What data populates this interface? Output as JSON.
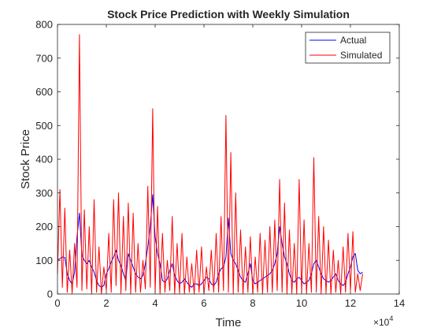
{
  "chart_data": {
    "type": "line",
    "title": "Stock Price Prediction with Weekly Simulation",
    "xlabel": "Time",
    "ylabel": "Stock Price",
    "xlim": [
      0,
      140000
    ],
    "ylim": [
      0,
      800
    ],
    "x_tick_labels": [
      "0",
      "2",
      "4",
      "6",
      "8",
      "10",
      "12",
      "14"
    ],
    "x_tick_values": [
      0,
      20000,
      40000,
      60000,
      80000,
      100000,
      120000,
      140000
    ],
    "x_exponent_label": "×10",
    "x_exponent_power": "4",
    "y_tick_labels": [
      "0",
      "100",
      "200",
      "300",
      "400",
      "500",
      "600",
      "700",
      "800"
    ],
    "y_tick_values": [
      0,
      100,
      200,
      300,
      400,
      500,
      600,
      700,
      800
    ],
    "grid": false,
    "legend_position": "top-right",
    "series": [
      {
        "name": "Actual",
        "color": "#0000ff",
        "x": [
          0,
          1000,
          2000,
          3000,
          4000,
          5000,
          6000,
          7000,
          8000,
          9000,
          10000,
          11000,
          12000,
          13000,
          14000,
          15000,
          16000,
          17000,
          18000,
          19000,
          20000,
          21000,
          22000,
          23000,
          24000,
          25000,
          26000,
          27000,
          28000,
          29000,
          30000,
          31000,
          32000,
          33000,
          34000,
          35000,
          36000,
          37000,
          38000,
          39000,
          40000,
          41000,
          42000,
          43000,
          44000,
          45000,
          46000,
          47000,
          48000,
          49000,
          50000,
          51000,
          52000,
          53000,
          54000,
          55000,
          56000,
          57000,
          58000,
          59000,
          60000,
          61000,
          62000,
          63000,
          64000,
          65000,
          66000,
          67000,
          68000,
          69000,
          70000,
          71000,
          72000,
          73000,
          74000,
          75000,
          76000,
          77000,
          78000,
          79000,
          80000,
          81000,
          82000,
          83000,
          84000,
          85000,
          86000,
          87000,
          88000,
          89000,
          90000,
          91000,
          92000,
          93000,
          94000,
          95000,
          96000,
          97000,
          98000,
          99000,
          100000,
          101000,
          102000,
          103000,
          104000,
          105000,
          106000,
          107000,
          108000,
          109000,
          110000,
          111000,
          112000,
          113000,
          114000,
          115000,
          116000,
          117000,
          118000,
          119000,
          120000,
          121000,
          122000,
          123000,
          124000,
          125000
        ],
        "values": [
          100,
          105,
          110,
          108,
          60,
          40,
          30,
          65,
          170,
          240,
          115,
          100,
          90,
          100,
          80,
          65,
          40,
          25,
          20,
          25,
          60,
          75,
          95,
          110,
          130,
          100,
          85,
          60,
          40,
          120,
          100,
          80,
          60,
          50,
          45,
          55,
          90,
          140,
          200,
          295,
          170,
          120,
          90,
          40,
          35,
          45,
          70,
          90,
          55,
          40,
          30,
          35,
          45,
          35,
          25,
          20,
          30,
          30,
          25,
          30,
          40,
          50,
          45,
          30,
          25,
          35,
          60,
          75,
          80,
          110,
          225,
          120,
          100,
          90,
          70,
          50,
          40,
          35,
          60,
          90,
          40,
          30,
          35,
          40,
          45,
          50,
          55,
          60,
          70,
          90,
          120,
          200,
          150,
          110,
          90,
          60,
          40,
          35,
          45,
          50,
          40,
          30,
          35,
          40,
          60,
          90,
          100,
          80,
          60,
          45,
          40,
          35,
          40,
          50,
          60,
          40,
          30,
          25,
          35,
          60,
          80,
          110,
          120,
          70,
          60,
          65
        ]
      },
      {
        "name": "Simulated",
        "color": "#ff0000",
        "x": [
          0,
          1000,
          2000,
          3000,
          4000,
          5000,
          6000,
          7000,
          8000,
          9000,
          10000,
          11000,
          12000,
          13000,
          14000,
          15000,
          16000,
          17000,
          18000,
          19000,
          20000,
          21000,
          22000,
          23000,
          24000,
          25000,
          26000,
          27000,
          28000,
          29000,
          30000,
          31000,
          32000,
          33000,
          34000,
          35000,
          36000,
          37000,
          38000,
          39000,
          40000,
          41000,
          42000,
          43000,
          44000,
          45000,
          46000,
          47000,
          48000,
          49000,
          50000,
          51000,
          52000,
          53000,
          54000,
          55000,
          56000,
          57000,
          58000,
          59000,
          60000,
          61000,
          62000,
          63000,
          64000,
          65000,
          66000,
          67000,
          68000,
          69000,
          70000,
          71000,
          72000,
          73000,
          74000,
          75000,
          76000,
          77000,
          78000,
          79000,
          80000,
          81000,
          82000,
          83000,
          84000,
          85000,
          86000,
          87000,
          88000,
          89000,
          90000,
          91000,
          92000,
          93000,
          94000,
          95000,
          96000,
          97000,
          98000,
          99000,
          100000,
          101000,
          102000,
          103000,
          104000,
          105000,
          106000,
          107000,
          108000,
          109000,
          110000,
          111000,
          112000,
          113000,
          114000,
          115000,
          116000,
          117000,
          118000,
          119000,
          120000,
          121000,
          122000,
          123000,
          124000,
          125000
        ],
        "values": [
          60,
          310,
          20,
          255,
          5,
          130,
          2,
          150,
          20,
          770,
          10,
          250,
          15,
          200,
          0,
          280,
          5,
          140,
          0,
          80,
          10,
          180,
          5,
          280,
          25,
          300,
          2,
          230,
          10,
          270,
          0,
          240,
          5,
          150,
          5,
          100,
          15,
          320,
          20,
          550,
          5,
          260,
          0,
          180,
          5,
          100,
          10,
          230,
          0,
          150,
          2,
          180,
          0,
          110,
          5,
          90,
          0,
          130,
          5,
          140,
          0,
          80,
          10,
          130,
          5,
          180,
          5,
          230,
          10,
          530,
          5,
          420,
          0,
          300,
          5,
          190,
          0,
          140,
          5,
          170,
          0,
          110,
          5,
          180,
          0,
          160,
          5,
          200,
          5,
          220,
          10,
          340,
          5,
          270,
          0,
          190,
          2,
          150,
          0,
          340,
          5,
          220,
          0,
          150,
          5,
          405,
          5,
          230,
          0,
          200,
          2,
          160,
          0,
          130,
          5,
          100,
          0,
          140,
          5,
          180,
          10,
          185,
          5,
          60,
          10,
          60
        ]
      }
    ]
  }
}
